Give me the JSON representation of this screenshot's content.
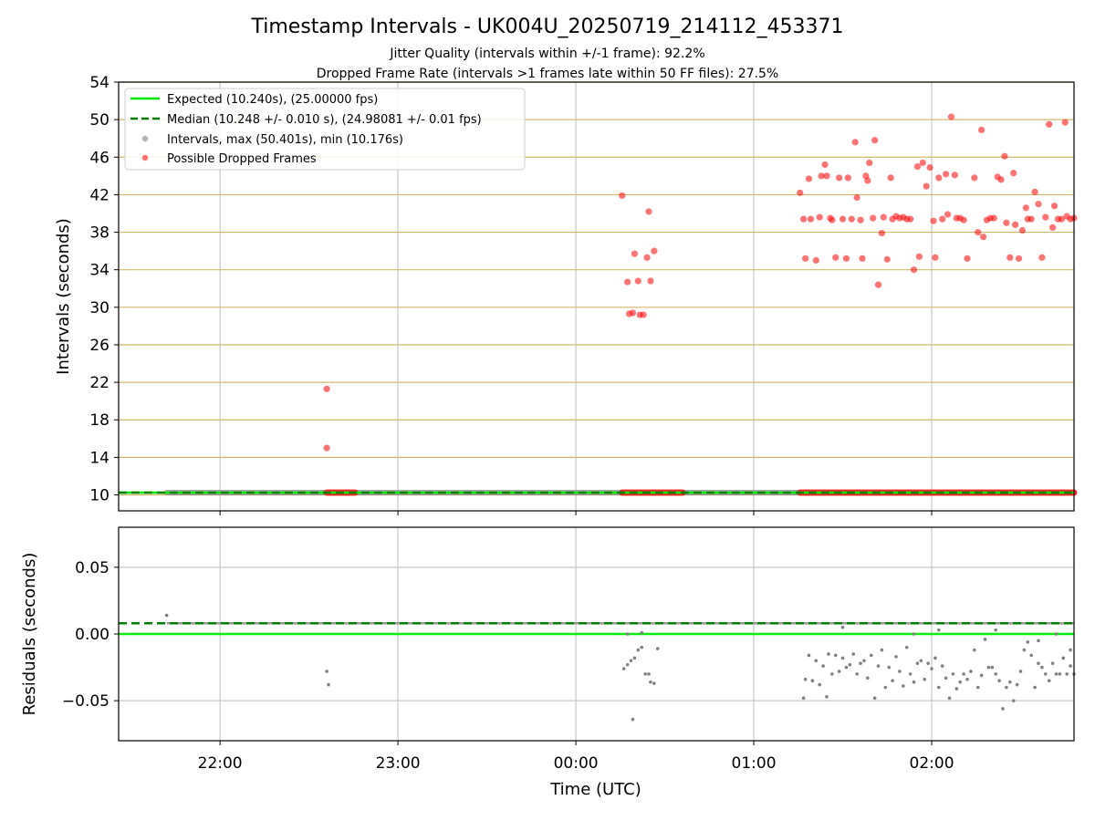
{
  "title": "Timestamp Intervals - UK004U_20250719_214112_453371",
  "subtitle1": "Jitter Quality (intervals within +/-1 frame): 92.2%",
  "subtitle2": "Dropped Frame Rate (intervals >1 frames late within 50 FF files): 27.5%",
  "colors": {
    "expected": "#00ee00",
    "median": "#008000",
    "intervals": "#808080",
    "dropped": "#ff0000",
    "hgrid_top": "#d4b86a",
    "grid": "#c8c8c8"
  },
  "chart_data": [
    {
      "type": "scatter",
      "panel": "intervals",
      "xlabel": "",
      "ylabel": "Intervals (seconds)",
      "xlim_hours": [
        21.43,
        26.8
      ],
      "ylim": [
        8.3,
        54
      ],
      "yticks": [
        10,
        14,
        18,
        22,
        26,
        30,
        34,
        38,
        42,
        46,
        50,
        54
      ],
      "xticks": [
        {
          "hour": 22,
          "label": "22:00"
        },
        {
          "hour": 23,
          "label": "23:00"
        },
        {
          "hour": 24,
          "label": "00:00"
        },
        {
          "hour": 25,
          "label": "01:00"
        },
        {
          "hour": 26,
          "label": "02:00"
        }
      ],
      "grid": true,
      "legend_position": "top-left",
      "legend": [
        {
          "label": "Expected (10.240s), (25.00000 fps)",
          "kind": "line-solid"
        },
        {
          "label": "Median (10.248 +/- 0.010 s), (24.98081 +/- 0.01 fps)",
          "kind": "line-dashed"
        },
        {
          "label": "Intervals, max (50.401s), min (10.176s)",
          "kind": "dot-gray"
        },
        {
          "label": "Possible Dropped Frames",
          "kind": "dot-red"
        }
      ],
      "expected_value": 10.24,
      "median_value": 10.248,
      "baseline_interval_span_hours": [
        21.7,
        26.8
      ],
      "dropped_baseline_spans_hours": [
        [
          22.6,
          22.76
        ],
        [
          24.26,
          24.6
        ],
        [
          25.26,
          26.8
        ]
      ],
      "dropped_points": [
        [
          22.6,
          21.3
        ],
        [
          22.6,
          15.0
        ],
        [
          24.26,
          41.9
        ],
        [
          24.29,
          32.7
        ],
        [
          24.3,
          29.3
        ],
        [
          24.32,
          29.4
        ],
        [
          24.33,
          35.7
        ],
        [
          24.35,
          32.8
        ],
        [
          24.36,
          29.2
        ],
        [
          24.38,
          29.2
        ],
        [
          24.4,
          35.3
        ],
        [
          24.41,
          40.2
        ],
        [
          24.42,
          32.8
        ],
        [
          24.44,
          36.0
        ],
        [
          25.26,
          42.2
        ],
        [
          25.28,
          39.4
        ],
        [
          25.29,
          35.2
        ],
        [
          25.31,
          43.7
        ],
        [
          25.32,
          39.4
        ],
        [
          25.35,
          35.0
        ],
        [
          25.37,
          39.6
        ],
        [
          25.38,
          44.0
        ],
        [
          25.4,
          45.2
        ],
        [
          25.41,
          44.0
        ],
        [
          25.43,
          39.5
        ],
        [
          25.44,
          39.3
        ],
        [
          25.46,
          35.3
        ],
        [
          25.48,
          43.8
        ],
        [
          25.5,
          39.4
        ],
        [
          25.52,
          35.2
        ],
        [
          25.53,
          43.8
        ],
        [
          25.55,
          39.4
        ],
        [
          25.57,
          47.6
        ],
        [
          25.58,
          41.7
        ],
        [
          25.6,
          39.3
        ],
        [
          25.61,
          35.2
        ],
        [
          25.63,
          44.0
        ],
        [
          25.64,
          43.5
        ],
        [
          25.65,
          45.4
        ],
        [
          25.67,
          39.5
        ],
        [
          25.68,
          47.8
        ],
        [
          25.7,
          32.4
        ],
        [
          25.72,
          37.9
        ],
        [
          25.73,
          39.6
        ],
        [
          25.75,
          35.1
        ],
        [
          25.77,
          43.8
        ],
        [
          25.78,
          39.4
        ],
        [
          25.8,
          39.7
        ],
        [
          25.82,
          39.5
        ],
        [
          25.84,
          39.6
        ],
        [
          25.86,
          39.4
        ],
        [
          25.88,
          39.4
        ],
        [
          25.9,
          34.0
        ],
        [
          25.92,
          45.0
        ],
        [
          25.93,
          35.4
        ],
        [
          25.95,
          45.4
        ],
        [
          25.97,
          42.9
        ],
        [
          25.99,
          44.9
        ],
        [
          26.01,
          39.2
        ],
        [
          26.02,
          35.3
        ],
        [
          26.04,
          43.8
        ],
        [
          26.06,
          39.4
        ],
        [
          26.08,
          44.2
        ],
        [
          26.09,
          39.9
        ],
        [
          26.11,
          50.3
        ],
        [
          26.13,
          44.1
        ],
        [
          26.14,
          39.5
        ],
        [
          26.16,
          39.5
        ],
        [
          26.18,
          39.3
        ],
        [
          26.2,
          35.2
        ],
        [
          26.24,
          43.8
        ],
        [
          26.26,
          38.0
        ],
        [
          26.28,
          48.9
        ],
        [
          26.29,
          37.5
        ],
        [
          26.31,
          39.3
        ],
        [
          26.33,
          39.5
        ],
        [
          26.35,
          39.5
        ],
        [
          26.37,
          43.9
        ],
        [
          26.39,
          43.6
        ],
        [
          26.41,
          46.1
        ],
        [
          26.42,
          39.0
        ],
        [
          26.44,
          35.3
        ],
        [
          26.46,
          44.3
        ],
        [
          26.47,
          38.8
        ],
        [
          26.49,
          35.2
        ],
        [
          26.51,
          38.2
        ],
        [
          26.53,
          40.6
        ],
        [
          26.54,
          39.4
        ],
        [
          26.56,
          39.4
        ],
        [
          26.58,
          42.3
        ],
        [
          26.6,
          41.0
        ],
        [
          26.62,
          35.3
        ],
        [
          26.64,
          39.6
        ],
        [
          26.66,
          49.5
        ],
        [
          26.68,
          38.5
        ],
        [
          26.69,
          40.8
        ],
        [
          26.71,
          39.4
        ],
        [
          26.73,
          39.4
        ],
        [
          26.75,
          49.7
        ],
        [
          26.76,
          39.7
        ],
        [
          26.78,
          39.4
        ],
        [
          26.8,
          39.5
        ]
      ]
    },
    {
      "type": "scatter",
      "panel": "residuals",
      "xlabel": "Time (UTC)",
      "ylabel": "Residuals (seconds)",
      "xlim_hours": [
        21.43,
        26.8
      ],
      "ylim": [
        -0.08,
        0.08
      ],
      "yticks": [
        {
          "value": 0.05,
          "label": "0.05"
        },
        {
          "value": 0.0,
          "label": "0.00"
        },
        {
          "value": -0.05,
          "label": "−0.05"
        }
      ],
      "xticks": [
        {
          "hour": 22,
          "label": "22:00"
        },
        {
          "hour": 23,
          "label": "23:00"
        },
        {
          "hour": 24,
          "label": "00:00"
        },
        {
          "hour": 25,
          "label": "01:00"
        },
        {
          "hour": 26,
          "label": "02:00"
        }
      ],
      "grid": true,
      "expected_residual": 0.0,
      "median_residual": 0.008,
      "baseline_residual": 0.008,
      "baseline_span_hours": [
        21.7,
        26.8
      ],
      "first_point": [
        21.7,
        0.014
      ],
      "outliers": [
        [
          22.6,
          -0.028
        ],
        [
          22.61,
          -0.038
        ],
        [
          24.27,
          -0.026
        ],
        [
          24.29,
          -0.023
        ],
        [
          24.31,
          -0.02
        ],
        [
          24.32,
          -0.064
        ],
        [
          24.33,
          -0.018
        ],
        [
          24.35,
          -0.012
        ],
        [
          24.37,
          -0.01
        ],
        [
          24.39,
          -0.03
        ],
        [
          24.41,
          -0.03
        ],
        [
          24.42,
          -0.036
        ],
        [
          24.44,
          -0.037
        ],
        [
          24.46,
          -0.011
        ],
        [
          24.29,
          0.0
        ],
        [
          24.37,
          0.001
        ],
        [
          25.28,
          -0.048
        ],
        [
          25.29,
          -0.034
        ],
        [
          25.31,
          -0.016
        ],
        [
          25.33,
          -0.035
        ],
        [
          25.35,
          -0.02
        ],
        [
          25.37,
          -0.038
        ],
        [
          25.39,
          -0.024
        ],
        [
          25.41,
          -0.047
        ],
        [
          25.42,
          -0.015
        ],
        [
          25.44,
          -0.03
        ],
        [
          25.46,
          -0.016
        ],
        [
          25.48,
          -0.028
        ],
        [
          25.5,
          -0.018
        ],
        [
          25.52,
          -0.025
        ],
        [
          25.54,
          -0.023
        ],
        [
          25.56,
          -0.015
        ],
        [
          25.58,
          -0.03
        ],
        [
          25.6,
          -0.022
        ],
        [
          25.62,
          -0.02
        ],
        [
          25.64,
          -0.033
        ],
        [
          25.66,
          -0.016
        ],
        [
          25.68,
          -0.048
        ],
        [
          25.7,
          -0.024
        ],
        [
          25.72,
          -0.012
        ],
        [
          25.74,
          -0.04
        ],
        [
          25.76,
          -0.025
        ],
        [
          25.78,
          -0.035
        ],
        [
          25.8,
          -0.017
        ],
        [
          25.82,
          -0.028
        ],
        [
          25.84,
          -0.039
        ],
        [
          25.86,
          -0.01
        ],
        [
          25.88,
          -0.03
        ],
        [
          25.9,
          -0.036
        ],
        [
          25.92,
          -0.022
        ],
        [
          25.94,
          -0.02
        ],
        [
          25.96,
          -0.034
        ],
        [
          25.98,
          -0.022
        ],
        [
          26.0,
          -0.026
        ],
        [
          26.02,
          -0.018
        ],
        [
          26.04,
          -0.04
        ],
        [
          26.06,
          -0.024
        ],
        [
          26.08,
          -0.033
        ],
        [
          26.1,
          -0.048
        ],
        [
          26.12,
          -0.03
        ],
        [
          26.14,
          -0.041
        ],
        [
          26.16,
          -0.036
        ],
        [
          26.18,
          -0.03
        ],
        [
          26.2,
          -0.034
        ],
        [
          26.22,
          -0.028
        ],
        [
          26.24,
          -0.012
        ],
        [
          26.26,
          -0.04
        ],
        [
          26.28,
          -0.031
        ],
        [
          26.3,
          -0.004
        ],
        [
          26.32,
          -0.025
        ],
        [
          26.34,
          -0.025
        ],
        [
          26.36,
          -0.03
        ],
        [
          26.38,
          -0.035
        ],
        [
          26.4,
          -0.056
        ],
        [
          26.42,
          -0.04
        ],
        [
          26.44,
          -0.036
        ],
        [
          26.46,
          -0.05
        ],
        [
          26.48,
          -0.038
        ],
        [
          26.5,
          -0.028
        ],
        [
          26.52,
          -0.012
        ],
        [
          26.54,
          -0.006
        ],
        [
          26.56,
          -0.016
        ],
        [
          26.58,
          -0.04
        ],
        [
          26.6,
          -0.022
        ],
        [
          26.62,
          -0.025
        ],
        [
          26.64,
          -0.03
        ],
        [
          26.66,
          -0.035
        ],
        [
          26.68,
          -0.022
        ],
        [
          26.7,
          -0.03
        ],
        [
          26.72,
          -0.03
        ],
        [
          26.74,
          -0.018
        ],
        [
          26.76,
          -0.03
        ],
        [
          26.78,
          -0.024
        ],
        [
          26.8,
          -0.03
        ],
        [
          26.78,
          -0.012
        ],
        [
          26.6,
          -0.005
        ],
        [
          25.9,
          0.0
        ],
        [
          26.04,
          0.003
        ],
        [
          26.36,
          0.003
        ],
        [
          25.5,
          0.005
        ],
        [
          26.7,
          0.0
        ]
      ]
    }
  ]
}
